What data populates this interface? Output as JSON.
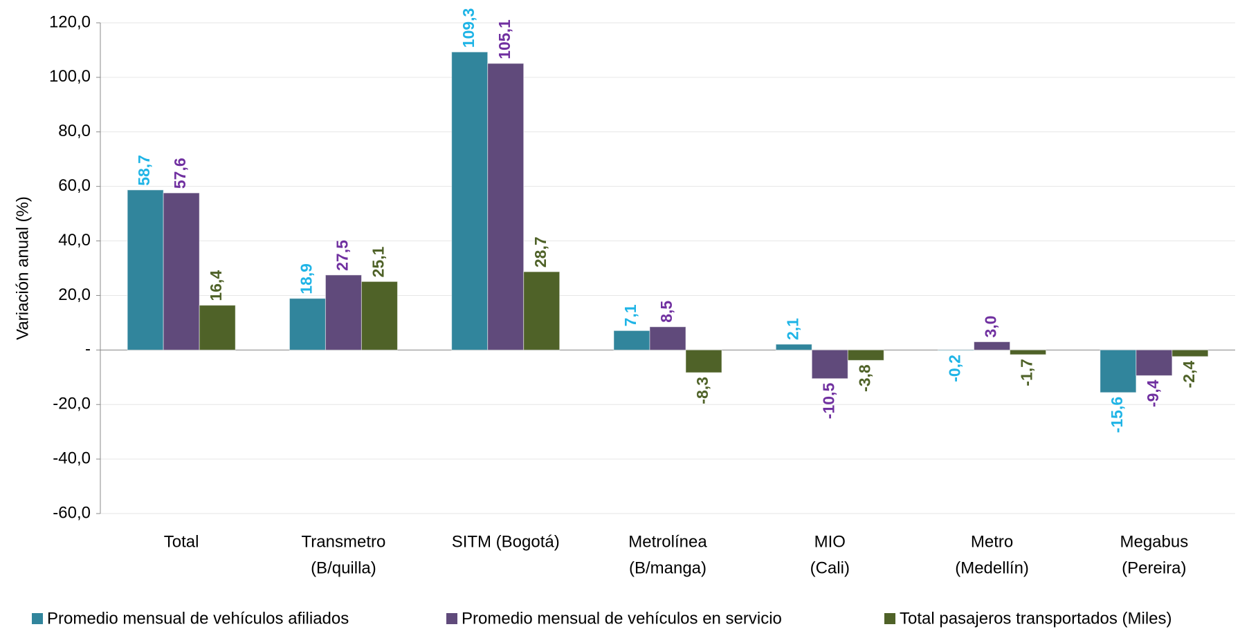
{
  "chart_data": {
    "type": "bar",
    "y_label": "Variación  anual (%)",
    "categories": [
      [
        "Total"
      ],
      [
        "Transmetro",
        "(B/quilla)"
      ],
      [
        "SITM (Bogotá)"
      ],
      [
        "Metrolínea",
        "(B/manga)"
      ],
      [
        "MIO",
        "(Cali)"
      ],
      [
        "Metro",
        "(Medellín)"
      ],
      [
        "Megabus",
        "(Pereira)"
      ]
    ],
    "series": [
      {
        "name": "Promedio mensual de vehículos afiliados",
        "color": "#31859c",
        "label_color": "#1fb4e6",
        "values": [
          58.7,
          18.9,
          109.3,
          7.1,
          2.1,
          -0.2,
          -15.6
        ],
        "value_labels": [
          "58,7",
          "18,9",
          "109,3",
          "7,1",
          "2,1",
          "-0,2",
          "-15,6"
        ]
      },
      {
        "name": "Promedio mensual  de vehículos en servicio",
        "color": "#604a7b",
        "label_color": "#7030a0",
        "values": [
          57.6,
          27.5,
          105.1,
          8.5,
          -10.5,
          3.0,
          -9.4
        ],
        "value_labels": [
          "57,6",
          "27,5",
          "105,1",
          "8,5",
          "-10,5",
          "3,0",
          "-9,4"
        ]
      },
      {
        "name": "Total pasajeros transportados (Miles)",
        "color": "#4f6228",
        "label_color": "#4f6228",
        "values": [
          16.4,
          25.1,
          28.7,
          -8.3,
          -3.8,
          -1.7,
          -2.4
        ],
        "value_labels": [
          "16,4",
          "25,1",
          "28,7",
          "-8,3",
          "-3,8",
          "-1,7",
          "-2,4"
        ]
      }
    ],
    "ylim": [
      -60,
      120
    ],
    "yticks": [
      {
        "value": -60,
        "label": "-60,0"
      },
      {
        "value": -40,
        "label": "-40,0"
      },
      {
        "value": -20,
        "label": "-20,0"
      },
      {
        "value": 0,
        "label": "-"
      },
      {
        "value": 20,
        "label": "20,0"
      },
      {
        "value": 40,
        "label": "40,0"
      },
      {
        "value": 60,
        "label": "60,0"
      },
      {
        "value": 80,
        "label": "80,0"
      },
      {
        "value": 100,
        "label": "100,0"
      },
      {
        "value": 120,
        "label": "120,0"
      }
    ],
    "grid": true
  }
}
